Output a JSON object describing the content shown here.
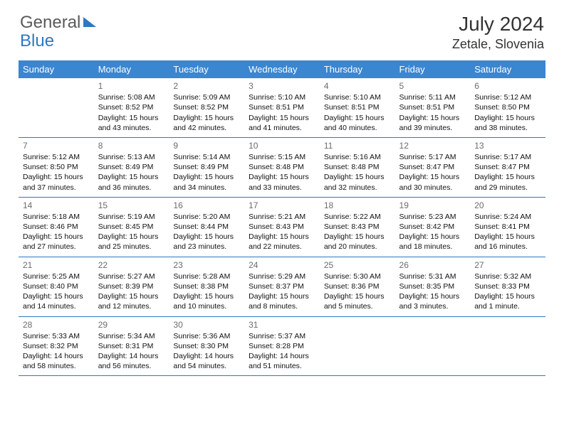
{
  "brand": {
    "general": "General",
    "blue": "Blue"
  },
  "title": "July 2024",
  "location": "Zetale, Slovenia",
  "header_row_color": "#3b86d1",
  "separator_color": "#2f78c2",
  "day_headers": [
    "Sunday",
    "Monday",
    "Tuesday",
    "Wednesday",
    "Thursday",
    "Friday",
    "Saturday"
  ],
  "weeks": [
    [
      null,
      {
        "n": "1",
        "sr": "5:08 AM",
        "ss": "8:52 PM",
        "dl": "15 hours and 43 minutes."
      },
      {
        "n": "2",
        "sr": "5:09 AM",
        "ss": "8:52 PM",
        "dl": "15 hours and 42 minutes."
      },
      {
        "n": "3",
        "sr": "5:10 AM",
        "ss": "8:51 PM",
        "dl": "15 hours and 41 minutes."
      },
      {
        "n": "4",
        "sr": "5:10 AM",
        "ss": "8:51 PM",
        "dl": "15 hours and 40 minutes."
      },
      {
        "n": "5",
        "sr": "5:11 AM",
        "ss": "8:51 PM",
        "dl": "15 hours and 39 minutes."
      },
      {
        "n": "6",
        "sr": "5:12 AM",
        "ss": "8:50 PM",
        "dl": "15 hours and 38 minutes."
      }
    ],
    [
      {
        "n": "7",
        "sr": "5:12 AM",
        "ss": "8:50 PM",
        "dl": "15 hours and 37 minutes."
      },
      {
        "n": "8",
        "sr": "5:13 AM",
        "ss": "8:49 PM",
        "dl": "15 hours and 36 minutes."
      },
      {
        "n": "9",
        "sr": "5:14 AM",
        "ss": "8:49 PM",
        "dl": "15 hours and 34 minutes."
      },
      {
        "n": "10",
        "sr": "5:15 AM",
        "ss": "8:48 PM",
        "dl": "15 hours and 33 minutes."
      },
      {
        "n": "11",
        "sr": "5:16 AM",
        "ss": "8:48 PM",
        "dl": "15 hours and 32 minutes."
      },
      {
        "n": "12",
        "sr": "5:17 AM",
        "ss": "8:47 PM",
        "dl": "15 hours and 30 minutes."
      },
      {
        "n": "13",
        "sr": "5:17 AM",
        "ss": "8:47 PM",
        "dl": "15 hours and 29 minutes."
      }
    ],
    [
      {
        "n": "14",
        "sr": "5:18 AM",
        "ss": "8:46 PM",
        "dl": "15 hours and 27 minutes."
      },
      {
        "n": "15",
        "sr": "5:19 AM",
        "ss": "8:45 PM",
        "dl": "15 hours and 25 minutes."
      },
      {
        "n": "16",
        "sr": "5:20 AM",
        "ss": "8:44 PM",
        "dl": "15 hours and 23 minutes."
      },
      {
        "n": "17",
        "sr": "5:21 AM",
        "ss": "8:43 PM",
        "dl": "15 hours and 22 minutes."
      },
      {
        "n": "18",
        "sr": "5:22 AM",
        "ss": "8:43 PM",
        "dl": "15 hours and 20 minutes."
      },
      {
        "n": "19",
        "sr": "5:23 AM",
        "ss": "8:42 PM",
        "dl": "15 hours and 18 minutes."
      },
      {
        "n": "20",
        "sr": "5:24 AM",
        "ss": "8:41 PM",
        "dl": "15 hours and 16 minutes."
      }
    ],
    [
      {
        "n": "21",
        "sr": "5:25 AM",
        "ss": "8:40 PM",
        "dl": "15 hours and 14 minutes."
      },
      {
        "n": "22",
        "sr": "5:27 AM",
        "ss": "8:39 PM",
        "dl": "15 hours and 12 minutes."
      },
      {
        "n": "23",
        "sr": "5:28 AM",
        "ss": "8:38 PM",
        "dl": "15 hours and 10 minutes."
      },
      {
        "n": "24",
        "sr": "5:29 AM",
        "ss": "8:37 PM",
        "dl": "15 hours and 8 minutes."
      },
      {
        "n": "25",
        "sr": "5:30 AM",
        "ss": "8:36 PM",
        "dl": "15 hours and 5 minutes."
      },
      {
        "n": "26",
        "sr": "5:31 AM",
        "ss": "8:35 PM",
        "dl": "15 hours and 3 minutes."
      },
      {
        "n": "27",
        "sr": "5:32 AM",
        "ss": "8:33 PM",
        "dl": "15 hours and 1 minute."
      }
    ],
    [
      {
        "n": "28",
        "sr": "5:33 AM",
        "ss": "8:32 PM",
        "dl": "14 hours and 58 minutes."
      },
      {
        "n": "29",
        "sr": "5:34 AM",
        "ss": "8:31 PM",
        "dl": "14 hours and 56 minutes."
      },
      {
        "n": "30",
        "sr": "5:36 AM",
        "ss": "8:30 PM",
        "dl": "14 hours and 54 minutes."
      },
      {
        "n": "31",
        "sr": "5:37 AM",
        "ss": "8:28 PM",
        "dl": "14 hours and 51 minutes."
      },
      null,
      null,
      null
    ]
  ],
  "labels": {
    "sunrise": "Sunrise:",
    "sunset": "Sunset:",
    "daylight": "Daylight:"
  }
}
